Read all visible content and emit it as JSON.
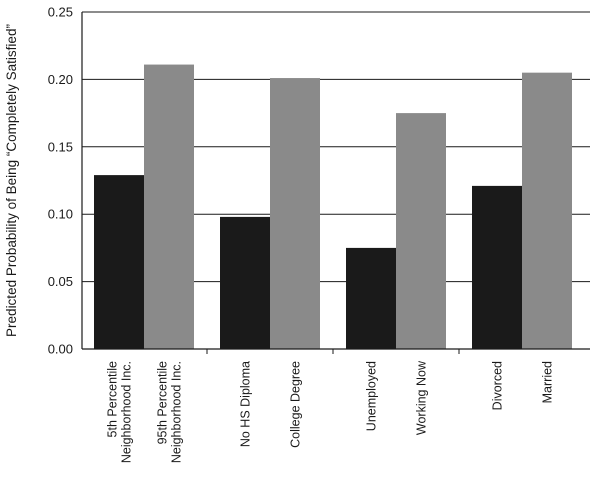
{
  "chart_data": {
    "type": "bar",
    "ylabel": "Predicted Probability of Being “Completely Satisfied”",
    "ylim": [
      0,
      0.25
    ],
    "yticks": [
      "0.00",
      "0.05",
      "0.10",
      "0.15",
      "0.20",
      "0.25"
    ],
    "grid": true,
    "groups": [
      {
        "bars": [
          {
            "label": [
              "5th Percentile",
              "Neighborhood Inc."
            ],
            "value": 0.129,
            "color": "#1a1a1a"
          },
          {
            "label": [
              "95th Percentile",
              "Neighborhood Inc."
            ],
            "value": 0.211,
            "color": "#8a8a8a"
          }
        ]
      },
      {
        "bars": [
          {
            "label": [
              "No HS Diploma"
            ],
            "value": 0.098,
            "color": "#1a1a1a"
          },
          {
            "label": [
              "College Degree"
            ],
            "value": 0.201,
            "color": "#8a8a8a"
          }
        ]
      },
      {
        "bars": [
          {
            "label": [
              "Unemployed"
            ],
            "value": 0.075,
            "color": "#1a1a1a"
          },
          {
            "label": [
              "Working Now"
            ],
            "value": 0.175,
            "color": "#8a8a8a"
          }
        ]
      },
      {
        "bars": [
          {
            "label": [
              "Divorced"
            ],
            "value": 0.121,
            "color": "#1a1a1a"
          },
          {
            "label": [
              "Married"
            ],
            "value": 0.205,
            "color": "#8a8a8a"
          }
        ]
      }
    ]
  }
}
